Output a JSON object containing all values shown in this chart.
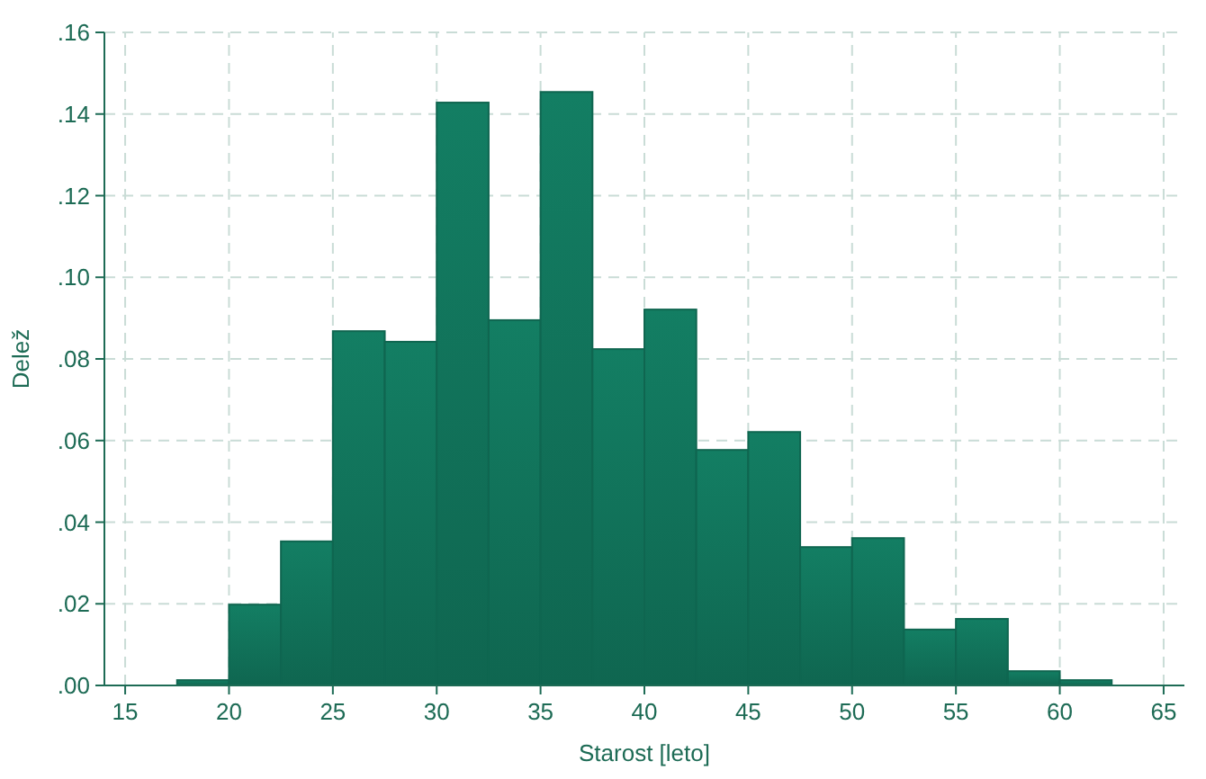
{
  "chart_data": {
    "type": "histogram",
    "xlabel": "Starost [leto]",
    "ylabel": "Delež",
    "bins": [
      17.5,
      20,
      22.5,
      25,
      27.5,
      30,
      32.5,
      35,
      37.5,
      40,
      42.5,
      45,
      47.5,
      50,
      52.5,
      55,
      57.5,
      60,
      62.5
    ],
    "values": [
      0.0013,
      0.0198,
      0.0353,
      0.0868,
      0.0842,
      0.1428,
      0.0895,
      0.1454,
      0.0824,
      0.0921,
      0.0577,
      0.0621,
      0.0339,
      0.0361,
      0.0137,
      0.0163,
      0.0035,
      0.0013
    ],
    "color": "#0f6650",
    "xlim": [
      14,
      66
    ],
    "xticks": [
      15,
      20,
      25,
      30,
      35,
      40,
      45,
      50,
      55,
      60,
      65
    ],
    "ylim": [
      0,
      0.16
    ],
    "yticks": [
      {
        "value": 0,
        "label": ".00"
      },
      {
        "value": 0.02,
        "label": ".02"
      },
      {
        "value": 0.04,
        "label": ".04"
      },
      {
        "value": 0.06,
        "label": ".06"
      },
      {
        "value": 0.08,
        "label": ".08"
      },
      {
        "value": 0.1,
        "label": ".10"
      },
      {
        "value": 0.12,
        "label": ".12"
      },
      {
        "value": 0.14,
        "label": ".14"
      },
      {
        "value": 0.16,
        "label": ".16"
      }
    ],
    "grid": true
  }
}
